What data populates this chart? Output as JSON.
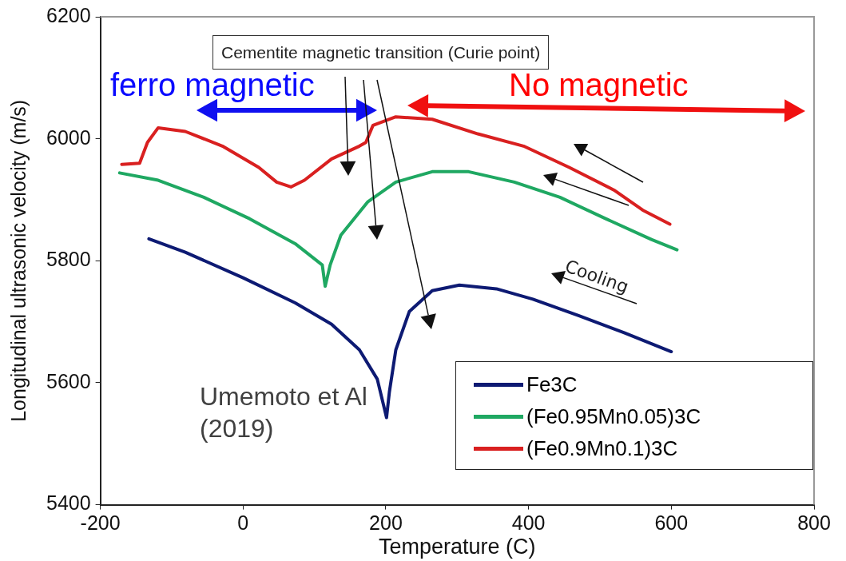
{
  "chart_data": {
    "type": "line",
    "xlabel": "Temperature (C)",
    "ylabel": "Longitudinal ultrasonic velocity (m/s)",
    "xlim": [
      -200,
      800
    ],
    "xticks": [
      -200,
      0,
      200,
      400,
      600,
      800
    ],
    "ylim": [
      5400,
      6200
    ],
    "yticks": [
      5400,
      5600,
      5800,
      6000,
      6200
    ],
    "grid": false,
    "legend": "bottom right",
    "marker": "none",
    "line_style": "solid",
    "annotations": [
      "Cementite magnetic transition (Curie point)",
      "ferro magnetic",
      "No magnetic",
      "Cooling",
      "Umemoto et Al (2019)"
    ],
    "series": [
      {
        "name": "Fe3C",
        "color": "#0d1a73",
        "x": [
          -132,
          -81,
          0,
          73,
          124,
          163,
          188,
          201,
          205,
          214,
          233,
          265,
          303,
          355,
          406,
          470,
          534,
          600
        ],
        "values": [
          5836,
          5814,
          5772,
          5731,
          5696,
          5654,
          5606,
          5543,
          5585,
          5654,
          5717,
          5751,
          5760,
          5754,
          5737,
          5710,
          5682,
          5651
        ]
      },
      {
        "name": "(Fe0.95Mn0.05)3C",
        "color": "#1fa862",
        "x": [
          -173,
          -119,
          -55,
          9,
          73,
          111,
          115,
          122,
          137,
          175,
          214,
          265,
          316,
          380,
          444,
          508,
          572,
          608
        ],
        "values": [
          5944,
          5932,
          5904,
          5869,
          5828,
          5793,
          5758,
          5793,
          5842,
          5897,
          5929,
          5946,
          5946,
          5929,
          5904,
          5869,
          5835,
          5818
        ]
      },
      {
        "name": "(Fe0.9Mn0.1)3C",
        "color": "#d92020",
        "x": [
          -170,
          -145,
          -134,
          -119,
          -81,
          -29,
          22,
          47,
          67,
          86,
          124,
          163,
          172,
          182,
          214,
          265,
          329,
          393,
          457,
          521,
          560,
          598
        ],
        "values": [
          5958,
          5960,
          5994,
          6018,
          6012,
          5988,
          5953,
          5929,
          5921,
          5932,
          5967,
          5988,
          5994,
          6022,
          6036,
          6032,
          6008,
          5988,
          5953,
          5915,
          5883,
          5860
        ]
      }
    ]
  }
}
